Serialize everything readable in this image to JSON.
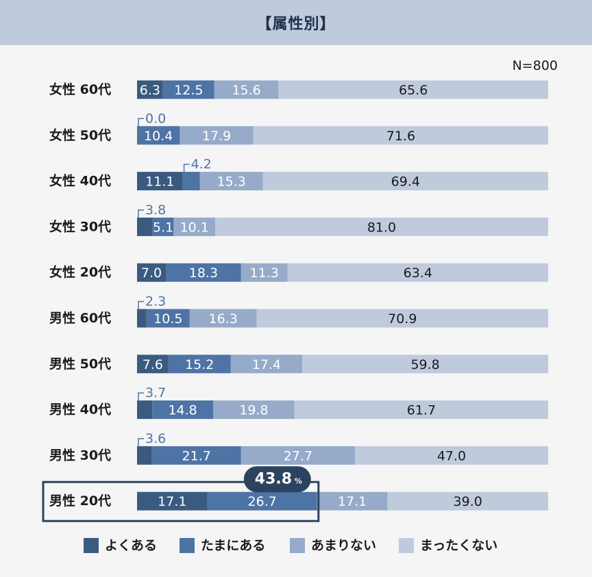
{
  "page_title": "【属性別】",
  "chart_data": {
    "type": "bar",
    "stacked": true,
    "orientation": "horizontal",
    "n_label": "N=800",
    "categories": [
      "女性 60代",
      "女性 50代",
      "女性 40代",
      "女性 30代",
      "女性 20代",
      "男性 60代",
      "男性 50代",
      "男性 40代",
      "男性 30代",
      "男性 20代"
    ],
    "series": [
      {
        "name": "よくある",
        "color": "#3b5a7f",
        "values": [
          6.3,
          0.0,
          11.1,
          3.8,
          7.0,
          2.3,
          7.6,
          3.7,
          3.6,
          17.1
        ]
      },
      {
        "name": "たまにある",
        "color": "#4e73a5",
        "values": [
          12.5,
          10.4,
          4.2,
          5.1,
          18.3,
          10.5,
          15.2,
          14.8,
          21.7,
          26.7
        ]
      },
      {
        "name": "あまりない",
        "color": "#96abc9",
        "values": [
          15.6,
          17.9,
          15.3,
          10.1,
          11.3,
          16.3,
          17.4,
          19.8,
          27.7,
          17.1
        ]
      },
      {
        "name": "まったくない",
        "color": "#bfcadd",
        "values": [
          65.6,
          71.6,
          69.4,
          81.0,
          63.4,
          70.9,
          59.8,
          61.7,
          47.0,
          39.0
        ]
      }
    ],
    "data_labels": [
      [
        "6.3",
        "12.5",
        "15.6",
        "65.6"
      ],
      [
        "0.0",
        "10.4",
        "17.9",
        "71.6"
      ],
      [
        "11.1",
        "4.2",
        "15.3",
        "69.4"
      ],
      [
        "3.8",
        "5.1",
        "10.1",
        "81.0"
      ],
      [
        "7.0",
        "18.3",
        "11.3",
        "63.4"
      ],
      [
        "2.3",
        "10.5",
        "16.3",
        "70.9"
      ],
      [
        "7.6",
        "15.2",
        "17.4",
        "59.8"
      ],
      [
        "3.7",
        "14.8",
        "19.8",
        "61.7"
      ],
      [
        "3.6",
        "21.7",
        "27.7",
        "47.0"
      ],
      [
        "17.1",
        "26.7",
        "17.1",
        "39.0"
      ]
    ],
    "callouts": [
      {
        "row": 1,
        "segment": 0
      },
      {
        "row": 2,
        "segment": 1
      },
      {
        "row": 3,
        "segment": 0
      },
      {
        "row": 5,
        "segment": 0
      },
      {
        "row": 7,
        "segment": 0
      },
      {
        "row": 8,
        "segment": 0
      }
    ],
    "highlight": {
      "row": 9,
      "value": "43.8",
      "unit": "%"
    },
    "xlim": [
      0,
      100
    ],
    "legend_position": "bottom"
  }
}
